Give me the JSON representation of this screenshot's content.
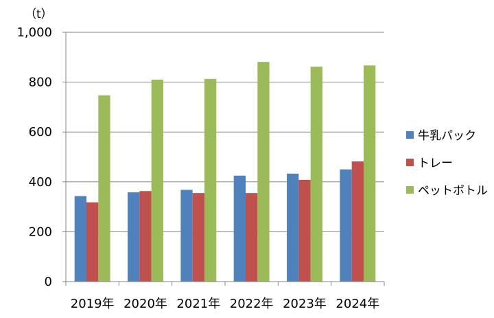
{
  "chart_data": {
    "type": "bar",
    "unit_label": "（t）",
    "categories": [
      "2019年",
      "2020年",
      "2021年",
      "2022年",
      "2023年",
      "2024年"
    ],
    "series": [
      {
        "name": "牛乳パック",
        "color": "#4F81BD",
        "values": [
          343,
          358,
          368,
          425,
          433,
          450
        ]
      },
      {
        "name": "トレー",
        "color": "#C0504D",
        "values": [
          318,
          363,
          355,
          355,
          408,
          482
        ]
      },
      {
        "name": "ペットボトル",
        "color": "#9BBB59",
        "values": [
          747,
          810,
          813,
          881,
          862,
          867
        ]
      }
    ],
    "ylim": [
      0,
      1000
    ],
    "yticks": [
      0,
      200,
      400,
      600,
      800,
      1000
    ],
    "ytick_labels": [
      "0",
      "200",
      "400",
      "600",
      "800",
      "1,000"
    ],
    "grid": true,
    "legend_position": "right"
  }
}
